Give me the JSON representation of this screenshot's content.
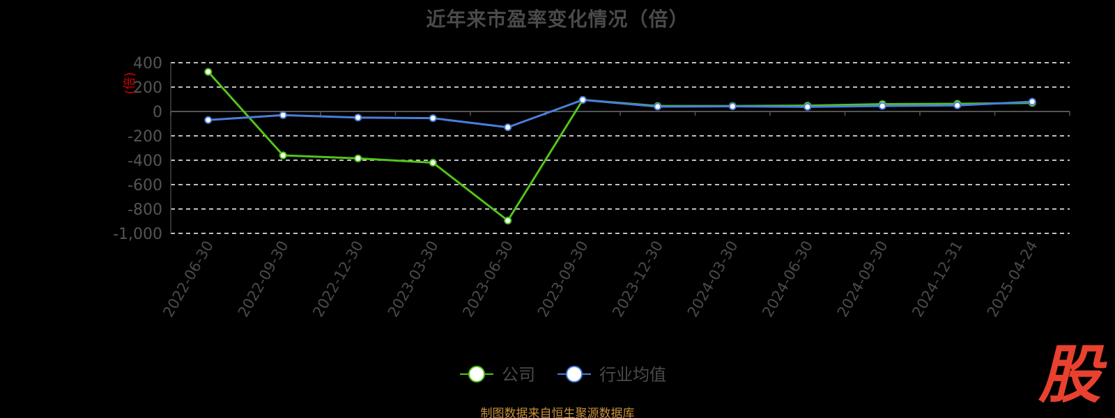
{
  "title": "近年来市盈率变化情况（倍）",
  "source": "制图数据来自恒生聚源数据库",
  "watermark": "股",
  "colors": {
    "company": "#52c41a",
    "industry": "#4a7fdb",
    "grid": "#ffffff",
    "axis_text": "#555555",
    "ylabel": "#cc0000",
    "source": "#c8923a",
    "watermark": "#e8412f"
  },
  "chart_data": {
    "type": "line",
    "title": "近年来市盈率变化情况（倍）",
    "ylabel": "倍",
    "ylim": [
      -1000,
      400
    ],
    "yticks": [
      400,
      200,
      0,
      -200,
      -400,
      -600,
      -800,
      -1000
    ],
    "ytick_labels": [
      "400",
      "200",
      "0",
      "-200",
      "-400",
      "-600",
      "-800",
      "-1,000"
    ],
    "grid": true,
    "legend": "bottom-center",
    "categories": [
      "2022-06-30",
      "2022-09-30",
      "2022-12-30",
      "2023-03-30",
      "2023-06-30",
      "2023-09-30",
      "2023-12-30",
      "2024-03-30",
      "2024-06-30",
      "2024-09-30",
      "2024-12-31",
      "2025-04-24"
    ],
    "series": [
      {
        "name": "公司",
        "color": "#52c41a",
        "values": [
          325,
          -360,
          -385,
          -420,
          -895,
          95,
          45,
          45,
          48,
          60,
          63,
          70
        ]
      },
      {
        "name": "行业均值",
        "color": "#4a7fdb",
        "values": [
          -70,
          -30,
          -50,
          -55,
          -130,
          95,
          40,
          42,
          38,
          45,
          50,
          80
        ]
      }
    ]
  }
}
